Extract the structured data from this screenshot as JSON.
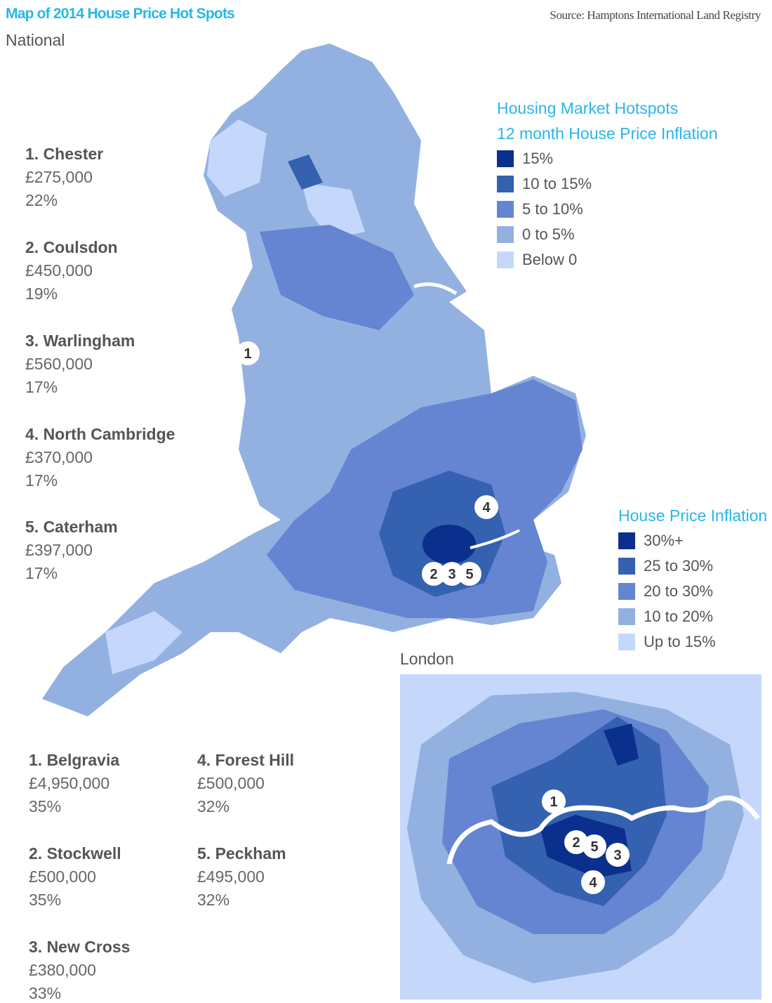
{
  "header": {
    "title": "Map of 2014 House Price Hot Spots",
    "source": "Source: Hamptons International Land Registry",
    "section": "National"
  },
  "national_list": [
    {
      "name": "1. Chester",
      "price": "£275,000",
      "change": "22%"
    },
    {
      "name": "2. Coulsdon",
      "price": "£450,000",
      "change": "19%"
    },
    {
      "name": "3. Warlingham",
      "price": "£560,000",
      "change": "17%"
    },
    {
      "name": "4. North Cambridge",
      "price": "£370,000",
      "change": "17%"
    },
    {
      "name": "5. Caterham",
      "price": "£397,000",
      "change": "17%"
    }
  ],
  "national_legend": {
    "title": "Housing Market Hotspots",
    "subtitle": "12 month House Price Inflation",
    "items": [
      {
        "label": "15%",
        "color": "#0a2f8c"
      },
      {
        "label": "10 to 15%",
        "color": "#3461b0"
      },
      {
        "label": "5 to 10%",
        "color": "#6584d2"
      },
      {
        "label": "0 to 5%",
        "color": "#93b1e0"
      },
      {
        "label": "Below 0",
        "color": "#c5d8fb"
      }
    ]
  },
  "national_markers": [
    "1",
    "2",
    "3",
    "5",
    "4"
  ],
  "london": {
    "label": "London",
    "legend": {
      "title": "House Price Inflation",
      "items": [
        {
          "label": "30%+",
          "color": "#0a2f8c"
        },
        {
          "label": "25 to 30%",
          "color": "#3461b0"
        },
        {
          "label": "20 to 30%",
          "color": "#6584d2"
        },
        {
          "label": "10 to 20%",
          "color": "#93b1e0"
        },
        {
          "label": "Up to 15%",
          "color": "#c5d8fb"
        }
      ]
    },
    "markers": [
      "1",
      "2",
      "5",
      "3",
      "4"
    ],
    "list": [
      {
        "name": "1. Belgravia",
        "price": "£4,950,000",
        "change": "35%"
      },
      {
        "name": "2. Stockwell",
        "price": "£500,000",
        "change": "35%"
      },
      {
        "name": "3. New Cross",
        "price": "£380,000",
        "change": "33%"
      },
      {
        "name": "4. Forest Hill",
        "price": "£500,000",
        "change": "32%"
      },
      {
        "name": "5. Peckham",
        "price": "£495,000",
        "change": "32%"
      }
    ]
  }
}
